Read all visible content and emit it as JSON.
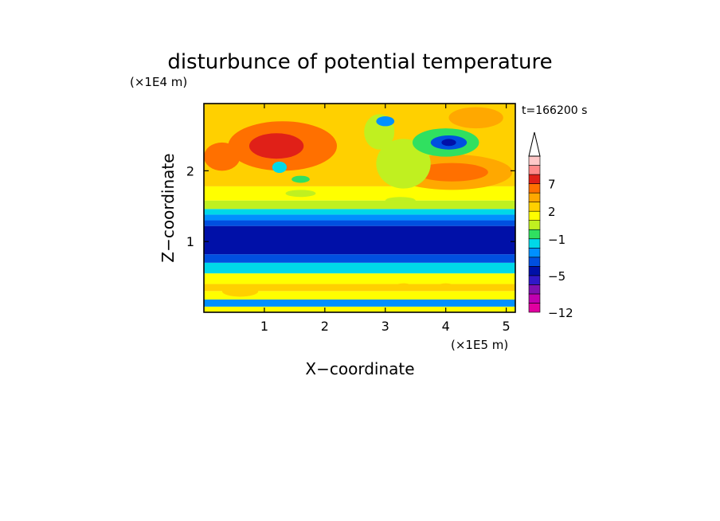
{
  "chart_data": {
    "type": "heatmap",
    "title": "disturbunce of potential temperature",
    "xlabel": "X−coordinate",
    "ylabel": "Z−coordinate",
    "x_unit": "(×1E5 m)",
    "y_unit": "(×1E4 m)",
    "time_label": "t=166200 s",
    "xlim": [
      0,
      5.15
    ],
    "ylim": [
      0,
      2.95
    ],
    "x_ticks": [
      1,
      2,
      3,
      4,
      5
    ],
    "y_ticks": [
      1,
      2
    ],
    "colorbar": {
      "levels": [
        -12,
        -10,
        -8,
        -6,
        -5,
        -4,
        -3,
        -2,
        -1,
        0,
        1,
        2,
        3,
        5,
        7,
        8,
        9
      ],
      "labels": [
        "7",
        "2",
        "−1",
        "−5",
        "−12"
      ],
      "colors": [
        "#e000a0",
        "#c000b0",
        "#8010b0",
        "#3018c8",
        "#0010a8",
        "#0050e0",
        "#0090ff",
        "#00d8e8",
        "#30e060",
        "#c0f020",
        "#ffff00",
        "#ffd000",
        "#ffa800",
        "#ff7000",
        "#e02018",
        "#ff8888",
        "#ffc8c8"
      ],
      "extend": "max",
      "extend_color": "#ffffff"
    },
    "bands": [
      {
        "z0": 0.0,
        "z1": 0.08,
        "value": 1
      },
      {
        "z0": 0.08,
        "z1": 0.18,
        "value": -3
      },
      {
        "z0": 0.18,
        "z1": 0.3,
        "value": 1
      },
      {
        "z0": 0.3,
        "z1": 0.4,
        "value": 2
      },
      {
        "z0": 0.4,
        "z1": 0.55,
        "value": 1
      },
      {
        "z0": 0.55,
        "z1": 0.7,
        "value": -2
      },
      {
        "z0": 0.7,
        "z1": 0.82,
        "value": -4
      },
      {
        "z0": 0.82,
        "z1": 1.22,
        "value": -5
      },
      {
        "z0": 1.22,
        "z1": 1.3,
        "value": -4
      },
      {
        "z0": 1.3,
        "z1": 1.38,
        "value": -3
      },
      {
        "z0": 1.38,
        "z1": 1.46,
        "value": -2
      },
      {
        "z0": 1.46,
        "z1": 1.58,
        "value": 0
      },
      {
        "z0": 1.58,
        "z1": 1.78,
        "value": 1
      },
      {
        "z0": 1.78,
        "z1": 2.95,
        "value": 2
      }
    ],
    "features": [
      {
        "x": 1.3,
        "z": 2.35,
        "rx": 0.9,
        "rz": 0.35,
        "value": 5
      },
      {
        "x": 1.2,
        "z": 2.35,
        "rx": 0.45,
        "rz": 0.18,
        "value": 7
      },
      {
        "x": 0.3,
        "z": 2.2,
        "rx": 0.3,
        "rz": 0.2,
        "value": 5
      },
      {
        "x": 4.1,
        "z": 1.98,
        "rx": 1.0,
        "rz": 0.25,
        "value": 3
      },
      {
        "x": 4.1,
        "z": 1.98,
        "rx": 0.6,
        "rz": 0.13,
        "value": 5
      },
      {
        "x": 3.3,
        "z": 2.1,
        "rx": 0.45,
        "rz": 0.35,
        "value": 0
      },
      {
        "x": 2.9,
        "z": 2.55,
        "rx": 0.25,
        "rz": 0.25,
        "value": 0
      },
      {
        "x": 4.0,
        "z": 2.4,
        "rx": 0.55,
        "rz": 0.2,
        "value": -1
      },
      {
        "x": 4.05,
        "z": 2.4,
        "rx": 0.3,
        "rz": 0.1,
        "value": -4
      },
      {
        "x": 4.05,
        "z": 2.4,
        "rx": 0.12,
        "rz": 0.05,
        "value": -5
      },
      {
        "x": 4.5,
        "z": 2.75,
        "rx": 0.45,
        "rz": 0.15,
        "value": 3
      },
      {
        "x": 3.0,
        "z": 2.7,
        "rx": 0.15,
        "rz": 0.07,
        "value": -3
      },
      {
        "x": 1.25,
        "z": 2.05,
        "rx": 0.12,
        "rz": 0.08,
        "value": -2
      },
      {
        "x": 1.6,
        "z": 1.88,
        "rx": 0.15,
        "rz": 0.05,
        "value": -1
      },
      {
        "x": 1.6,
        "z": 1.68,
        "rx": 0.25,
        "rz": 0.05,
        "value": 0
      },
      {
        "x": 3.25,
        "z": 1.58,
        "rx": 0.25,
        "rz": 0.05,
        "value": 0
      },
      {
        "x": 4.0,
        "z": 0.38,
        "rx": 0.12,
        "rz": 0.03,
        "value": 2
      },
      {
        "x": 3.3,
        "z": 0.38,
        "rx": 0.12,
        "rz": 0.03,
        "value": 2
      },
      {
        "x": 0.6,
        "z": 0.3,
        "rx": 0.3,
        "rz": 0.08,
        "value": 2
      }
    ]
  }
}
